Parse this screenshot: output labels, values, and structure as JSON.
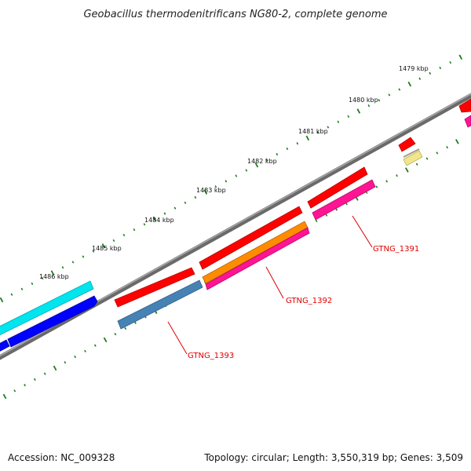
{
  "title": "Geobacillus thermodenitrificans NG80-2, complete genome",
  "ticks": [
    "1479 kbp",
    "1480 kbp",
    "1481 kbp",
    "1482 kbp",
    "1483 kbp",
    "1484 kbp",
    "1485 kbp",
    "1486 kbp"
  ],
  "gene_labels": [
    "GTNG_1391",
    "GTNG_1392",
    "GTNG_1393"
  ],
  "footer": {
    "accession": "Accession: NC_009328",
    "summary": "Topology: circular; Length: 3,550,319 bp; Genes: 3,509"
  },
  "colors": {
    "red": "#ff0000",
    "magenta": "#ff1493",
    "orange": "#ff8c00",
    "steelblue": "#4682b4",
    "cyan": "#00e5ee",
    "blue": "#0000ff",
    "khaki": "#f0e68c",
    "backbone": "#808080",
    "tick": "#1e7d1e"
  }
}
